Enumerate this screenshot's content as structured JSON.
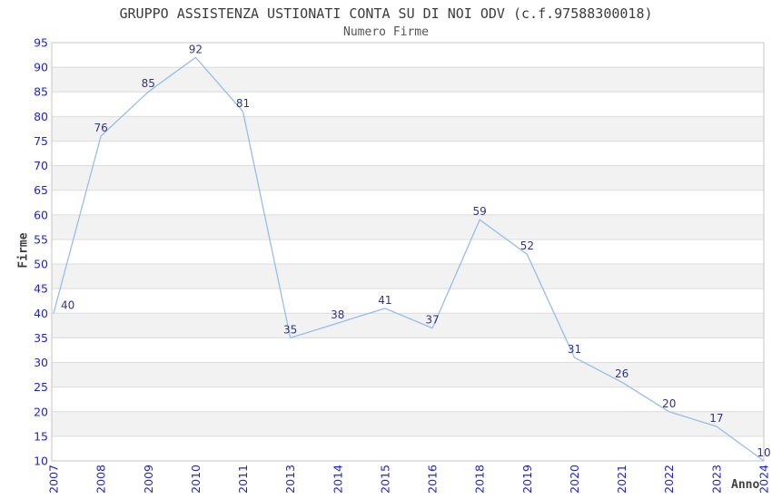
{
  "chart_data": {
    "type": "line",
    "title": "GRUPPO ASSISTENZA USTIONATI CONTA SU DI NOI ODV (c.f.97588300018)",
    "subtitle": "Numero Firme",
    "xlabel": "Anno",
    "ylabel": "Firme",
    "categories": [
      "2007",
      "2008",
      "2009",
      "2010",
      "2011",
      "2013",
      "2014",
      "2015",
      "2016",
      "2018",
      "2019",
      "2020",
      "2021",
      "2022",
      "2023",
      "2024"
    ],
    "values": [
      40,
      76,
      85,
      92,
      81,
      35,
      38,
      41,
      37,
      59,
      52,
      31,
      26,
      20,
      17,
      10
    ],
    "ylim": [
      10,
      95
    ],
    "ytick_step": 5,
    "grid": "horizontal-only",
    "band_style": "alternating-horizontal",
    "legend": "none",
    "point_markers": "none",
    "data_labels_visible": true,
    "colors": {
      "line": "#97bde9",
      "data_label": "#333388",
      "tick_label": "#2323cc",
      "band_fill": "#f2f2f2",
      "grid_line": "#dcdcdc",
      "plot_border": "#c6c6c6",
      "title_text": "#3c3c3c",
      "subtitle_text": "#555555",
      "axis_title_text": "#404040",
      "background": "#ffffff"
    }
  }
}
